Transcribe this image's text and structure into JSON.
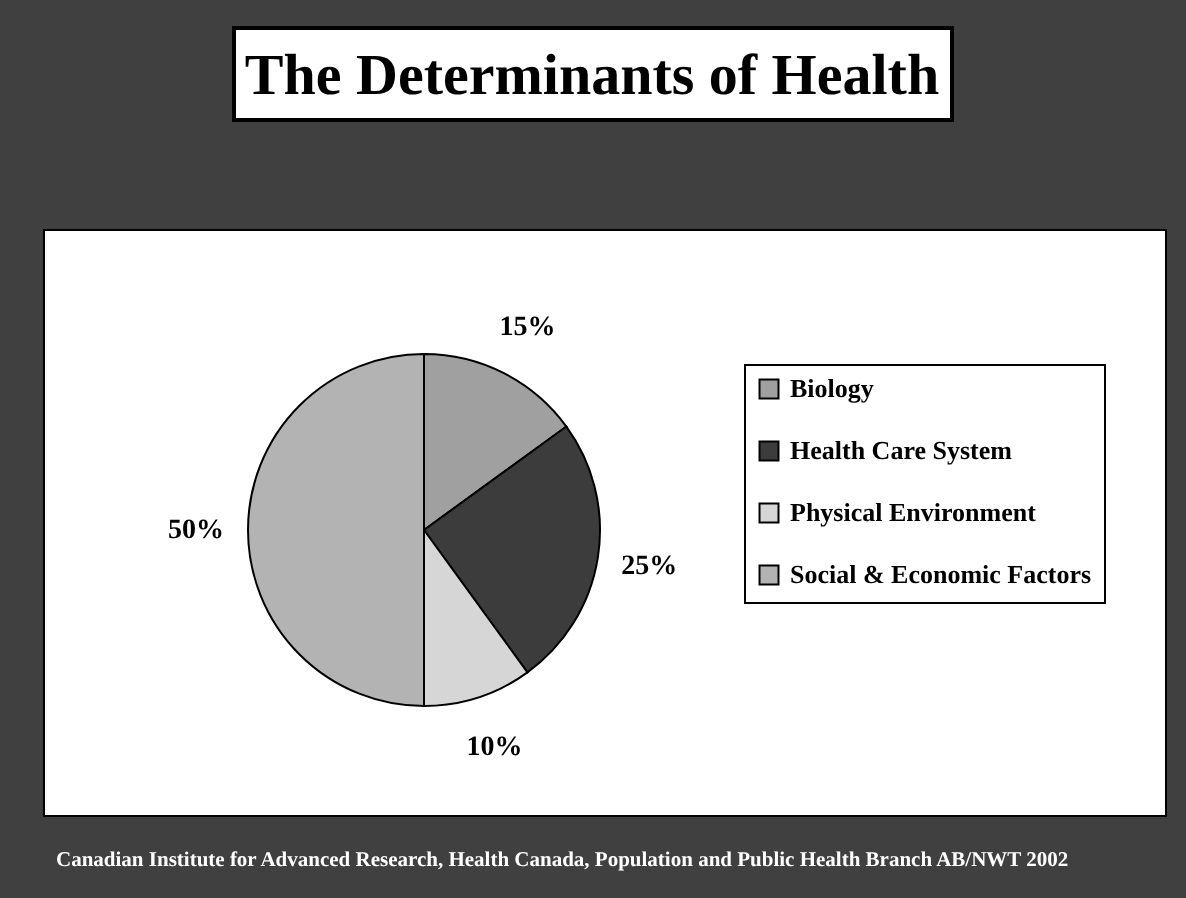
{
  "chart_data": {
    "type": "pie",
    "title": "The Determinants of Health",
    "categories": [
      "Biology",
      "Health Care System",
      "Physical Environment",
      "Social & Economic Factors"
    ],
    "values": [
      15,
      25,
      10,
      50
    ],
    "colors": [
      "#a0a0a0",
      "#3c3c3c",
      "#d6d6d6",
      "#b3b3b3"
    ],
    "value_labels": [
      "15%",
      "25%",
      "10%",
      "50%"
    ],
    "legend": "right",
    "annotations": [
      "Canadian Institute for Advanced Research, Health Canada, Population and Public Health Branch AB/NWT 2002"
    ]
  }
}
